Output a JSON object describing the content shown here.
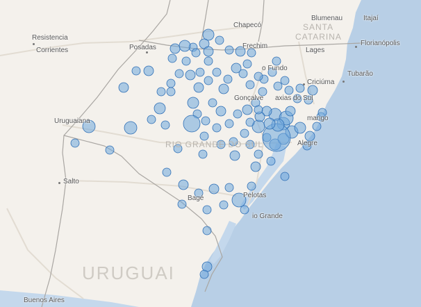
{
  "map": {
    "colors": {
      "land": "#f4f1ec",
      "ocean": "#b8cfe6",
      "lagoon": "#c4d8ec",
      "border": "#a9a6a2",
      "road": "#e2dcd2",
      "bubble_fill": "#6fa8dc",
      "bubble_stroke": "#2f6fb5"
    },
    "labels": {
      "chapeco": "Chapecó",
      "blumenau": "Blumenau",
      "itajai": "Itajaí",
      "santa": "SANTA",
      "catarina": "CATARINA",
      "florianopolis": "Florianópolis",
      "lages": "Lages",
      "frechim": "Frechim",
      "resistencia": "Resistencia",
      "corrientes": "Corrientes",
      "posadas": "Posadas",
      "passo_fundo": "o Fundo",
      "criciuma": "Criciúma",
      "tubarao": "Tubarão",
      "goncalves": "Gonçalve",
      "caxias": "axias do Sul",
      "uruguaiana": "Uruguaiana",
      "capao": "mango",
      "rs": "RIO GRANDE DO SUL",
      "porto_alegre": "Alegre",
      "salto": "Salto",
      "bage": "Bagé",
      "pelotas": "Pelotas",
      "rio_grande": "io Grande",
      "uruguai": "URUGUAI",
      "buenos_aires": "Buenos Aires"
    }
  }
}
